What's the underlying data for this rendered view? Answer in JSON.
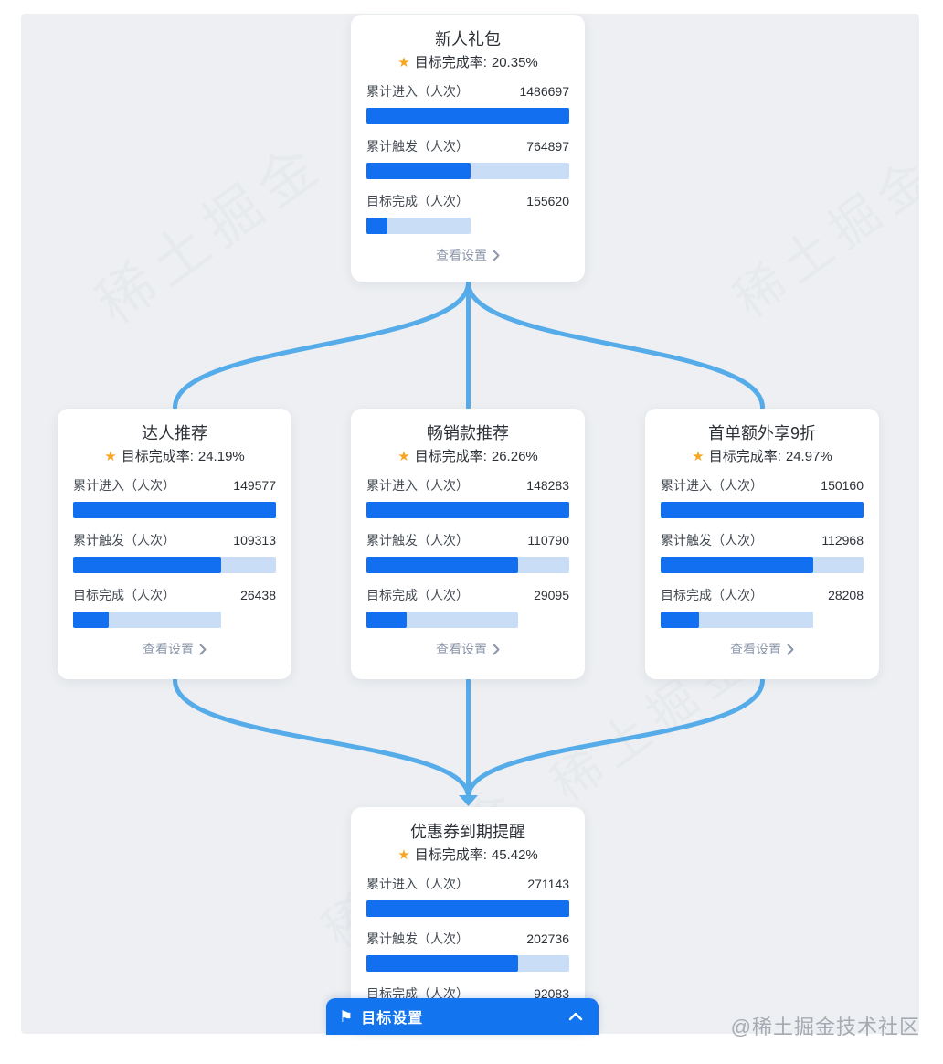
{
  "page": {
    "background_watermark": "稀土掘金",
    "watermark_credit": "@稀土掘金技术社区"
  },
  "colors": {
    "bar_fill": "#1270f0",
    "bar_track": "#c9def6",
    "connector": "#56abe9",
    "footer_bar": "#1374f0",
    "star": "#f6a622",
    "canvas_bg": "#edeff2"
  },
  "icons": {
    "star": "★",
    "flag": "⚑"
  },
  "rate_label": "目标完成率:",
  "link_label": "查看设置",
  "metric_labels": [
    "累计进入（人次）",
    "累计触发（人次）",
    "目标完成（人次）"
  ],
  "cards": [
    {
      "title": "新人礼包",
      "rate": "20.35%",
      "values": [
        1486697,
        764897,
        155620
      ]
    },
    {
      "title": "达人推荐",
      "rate": "24.19%",
      "values": [
        149577,
        109313,
        26438
      ]
    },
    {
      "title": "畅销款推荐",
      "rate": "26.26%",
      "values": [
        148283,
        110790,
        29095
      ]
    },
    {
      "title": "首单额外享9折",
      "rate": "24.97%",
      "values": [
        150160,
        112968,
        28208
      ]
    },
    {
      "title": "优惠券到期提醒",
      "rate": "45.42%",
      "values": [
        271143,
        202736,
        92083
      ]
    }
  ],
  "footer_bar": {
    "label": "目标设置"
  }
}
